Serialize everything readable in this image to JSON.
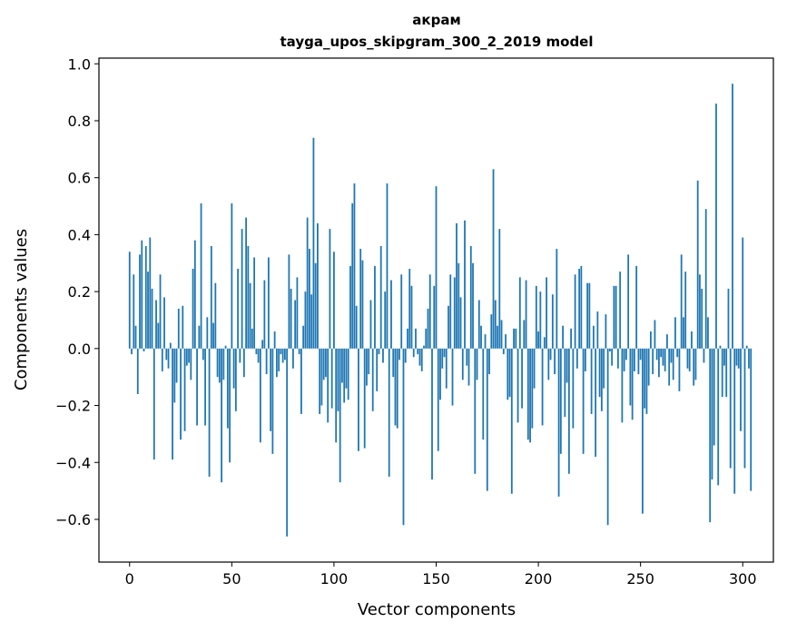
{
  "chart_data": {
    "type": "bar",
    "title": "акрам",
    "subtitle": "tayga_upos_skipgram_300_2_2019 model",
    "xlabel": "Vector components",
    "ylabel": "Components values",
    "xlim": [
      -15,
      315
    ],
    "ylim": [
      -0.75,
      1.02
    ],
    "xticks": [
      0,
      50,
      100,
      150,
      200,
      250,
      300
    ],
    "yticks": [
      -0.6,
      -0.4,
      -0.2,
      0.0,
      0.2,
      0.4,
      0.6,
      0.8,
      1.0
    ],
    "ytick_labels": [
      "−0.6",
      "−0.4",
      "−0.2",
      "0.0",
      "0.2",
      "0.4",
      "0.6",
      "0.8",
      "1.0"
    ],
    "bar_color": "#1f77b4",
    "values": [
      0.34,
      -0.02,
      0.26,
      0.08,
      -0.16,
      0.33,
      0.38,
      -0.01,
      0.36,
      0.27,
      0.39,
      0.21,
      -0.39,
      0.17,
      0.09,
      0.26,
      -0.08,
      0.18,
      -0.04,
      -0.07,
      0.02,
      -0.39,
      -0.19,
      -0.12,
      0.14,
      -0.32,
      0.15,
      -0.29,
      -0.06,
      -0.05,
      -0.11,
      0.28,
      0.38,
      -0.27,
      0.08,
      0.51,
      -0.04,
      -0.27,
      0.11,
      -0.45,
      0.36,
      0.09,
      0.23,
      -0.1,
      -0.12,
      -0.47,
      -0.11,
      0.01,
      -0.28,
      -0.4,
      0.51,
      -0.14,
      -0.22,
      0.28,
      -0.05,
      0.42,
      -0.1,
      0.46,
      0.36,
      0.23,
      0.07,
      0.32,
      -0.02,
      -0.05,
      -0.33,
      0.03,
      0.24,
      -0.09,
      0.32,
      -0.29,
      -0.37,
      0.06,
      -0.1,
      -0.08,
      -0.02,
      -0.05,
      -0.04,
      -0.66,
      0.33,
      0.21,
      -0.07,
      0.17,
      0.25,
      -0.02,
      -0.23,
      0.08,
      0.2,
      0.46,
      0.35,
      0.19,
      0.74,
      0.3,
      0.44,
      -0.23,
      -0.2,
      -0.11,
      -0.1,
      -0.26,
      0.42,
      -0.21,
      0.34,
      -0.33,
      -0.22,
      -0.47,
      -0.12,
      -0.19,
      -0.14,
      -0.18,
      0.29,
      0.51,
      0.58,
      0.15,
      -0.36,
      0.35,
      0.31,
      -0.35,
      -0.13,
      -0.09,
      0.17,
      -0.22,
      0.29,
      -0.15,
      -0.02,
      0.36,
      -0.05,
      0.2,
      0.58,
      -0.45,
      0.24,
      -0.1,
      -0.27,
      -0.28,
      -0.04,
      0.26,
      -0.62,
      -0.05,
      0.07,
      0.28,
      0.22,
      -0.03,
      0.07,
      -0.02,
      -0.06,
      -0.08,
      0.01,
      0.07,
      0.14,
      0.26,
      -0.46,
      0.22,
      0.57,
      -0.36,
      -0.18,
      -0.07,
      -0.03,
      -0.14,
      0.15,
      0.26,
      -0.2,
      0.25,
      0.44,
      0.3,
      0.18,
      -0.11,
      0.45,
      -0.06,
      -0.13,
      0.36,
      0.3,
      -0.44,
      -0.11,
      0.17,
      0.08,
      -0.32,
      0.05,
      -0.5,
      -0.09,
      0.12,
      0.63,
      0.17,
      0.08,
      0.42,
      0.1,
      -0.02,
      0.05,
      -0.18,
      -0.17,
      -0.51,
      0.07,
      0.07,
      -0.26,
      0.25,
      -0.21,
      0.1,
      0.24,
      -0.32,
      -0.33,
      -0.28,
      -0.14,
      0.22,
      0.06,
      0.2,
      -0.27,
      0.04,
      0.25,
      -0.11,
      -0.04,
      0.19,
      -0.09,
      0.35,
      -0.52,
      -0.37,
      0.08,
      -0.24,
      -0.12,
      -0.44,
      0.07,
      -0.28,
      0.26,
      -0.07,
      0.28,
      0.29,
      -0.37,
      -0.08,
      0.23,
      0.23,
      -0.23,
      0.08,
      -0.38,
      0.13,
      -0.17,
      -0.22,
      -0.14,
      0.12,
      -0.62,
      -0.01,
      -0.06,
      0.22,
      0.22,
      -0.07,
      0.27,
      -0.26,
      -0.08,
      -0.04,
      0.33,
      -0.2,
      -0.25,
      -0.08,
      0.29,
      -0.09,
      -0.04,
      -0.58,
      -0.21,
      -0.23,
      -0.13,
      0.06,
      -0.09,
      0.1,
      -0.04,
      -0.1,
      -0.03,
      -0.06,
      -0.08,
      0.05,
      -0.13,
      -0.05,
      -0.11,
      0.11,
      -0.03,
      -0.15,
      0.33,
      0.11,
      0.27,
      -0.07,
      -0.08,
      0.06,
      -0.13,
      -0.11,
      0.59,
      0.26,
      0.21,
      -0.05,
      0.49,
      0.11,
      -0.61,
      -0.46,
      -0.34,
      0.86,
      -0.48,
      0.01,
      -0.17,
      -0.06,
      -0.17,
      0.21,
      -0.42,
      0.93,
      -0.51,
      -0.06,
      -0.07,
      -0.29,
      0.39,
      -0.42,
      0.01,
      -0.07,
      -0.5
    ]
  }
}
